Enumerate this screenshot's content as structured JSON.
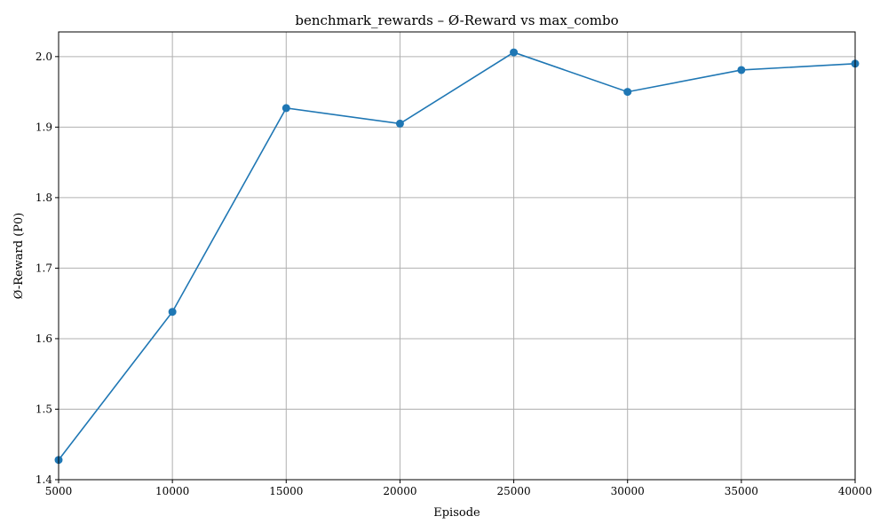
{
  "chart_data": {
    "type": "line",
    "title": "benchmark_rewards – Ø-Reward vs max_combo",
    "xlabel": "Episode",
    "ylabel": "Ø-Reward (P0)",
    "xlim": [
      5000,
      40000
    ],
    "ylim": [
      1.4,
      2.035
    ],
    "x_ticks": [
      5000,
      10000,
      15000,
      20000,
      25000,
      30000,
      35000,
      40000
    ],
    "y_ticks": [
      1.4,
      1.5,
      1.6,
      1.7,
      1.8,
      1.9,
      2.0
    ],
    "x_tick_labels": [
      "5000",
      "10000",
      "15000",
      "20000",
      "25000",
      "30000",
      "35000",
      "40000"
    ],
    "y_tick_labels": [
      "1.4",
      "1.5",
      "1.6",
      "1.7",
      "1.8",
      "1.9",
      "2.0"
    ],
    "grid": true,
    "series": [
      {
        "color": "#1f77b4",
        "marker": "circle",
        "x": [
          5000,
          10000,
          15000,
          20000,
          25000,
          30000,
          35000,
          40000
        ],
        "y": [
          1.428,
          1.638,
          1.927,
          1.905,
          2.006,
          1.95,
          1.981,
          1.99
        ]
      }
    ]
  }
}
